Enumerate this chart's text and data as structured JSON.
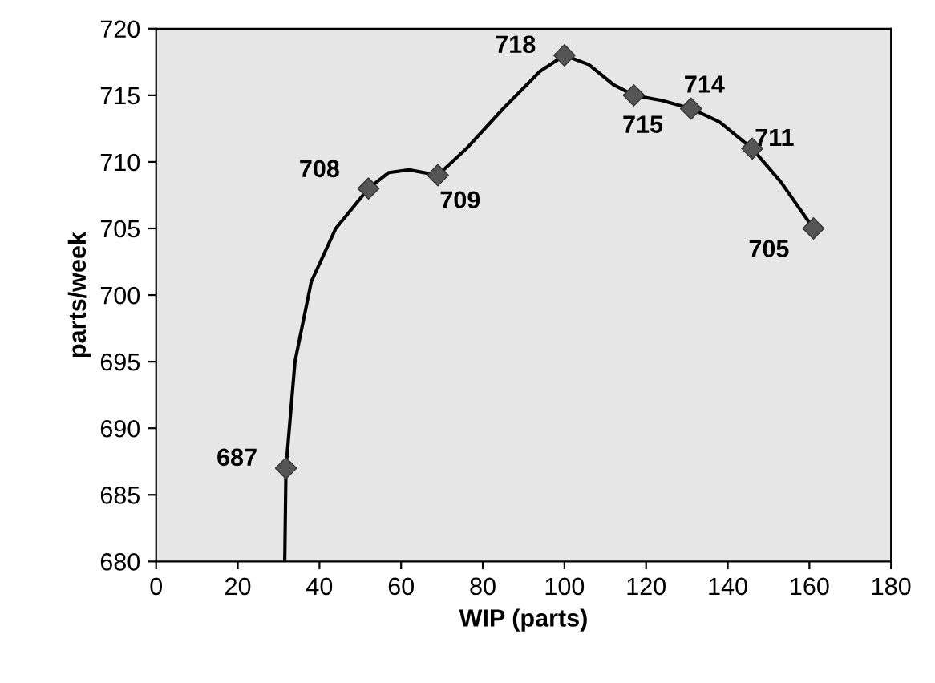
{
  "chart_data": {
    "type": "line",
    "xlabel": "WIP (parts)",
    "ylabel": "parts/week",
    "xlim": [
      0,
      180
    ],
    "xticks": [
      0,
      20,
      40,
      60,
      80,
      100,
      120,
      140,
      160,
      180
    ],
    "ylim": [
      680,
      720
    ],
    "yticks": [
      680,
      685,
      690,
      695,
      700,
      705,
      710,
      715,
      720
    ],
    "grid": false,
    "series": [
      {
        "color": "#000000",
        "marker": "none",
        "x": [
          31.5,
          31.8,
          34,
          38,
          44,
          52,
          57,
          62,
          69,
          76,
          85,
          94,
          100,
          106,
          112,
          117,
          124,
          131,
          138,
          146,
          153,
          161
        ],
        "values": [
          680,
          687,
          695,
          701,
          705,
          708,
          709.2,
          709.4,
          709,
          711,
          714,
          716.8,
          718,
          717.3,
          715.8,
          715,
          714.6,
          714,
          713,
          711,
          708.5,
          705
        ]
      },
      {
        "type": "scatter",
        "color": "#555555",
        "marker": "diamond",
        "data_labels": true,
        "x": [
          31.8,
          52,
          69,
          100,
          117,
          131,
          146,
          161
        ],
        "values": [
          687,
          708,
          709,
          718,
          715,
          714,
          711,
          705
        ]
      }
    ]
  }
}
